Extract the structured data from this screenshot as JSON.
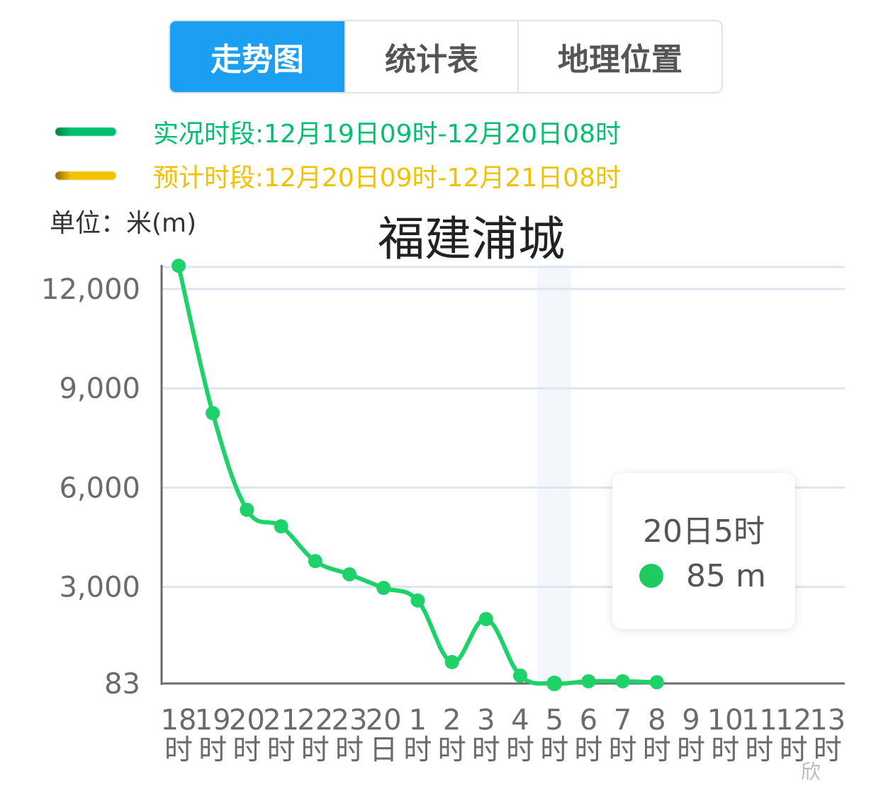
{
  "tabs": [
    {
      "label": "走势图",
      "active": true
    },
    {
      "label": "统计表",
      "active": false
    },
    {
      "label": "地理位置",
      "active": false
    }
  ],
  "legend": [
    {
      "text": "实况时段:12月19日09时-12月20日08时",
      "color": "#00c070"
    },
    {
      "text": "预计时段:12月20日09时-12月21日08时",
      "color": "#f2c200"
    }
  ],
  "unit_label": "单位：米(m)",
  "tooltip": {
    "time": "20日5时",
    "value": "85 m",
    "dot_color": "#1ecb63"
  },
  "watermark": "欣",
  "colors": {
    "line": "#1ed26a",
    "axis": "#6b6b6b",
    "grid": "#dde5f0",
    "highlight": "#f3f6fb"
  },
  "chart_data": {
    "type": "line",
    "title": "福建浦城",
    "ylabel": "单位：米(m)",
    "y_ticks": [
      83,
      3000,
      6000,
      9000,
      12000
    ],
    "y_tick_labels": [
      "83",
      "3,000",
      "6,000",
      "9,000",
      "12,000"
    ],
    "ylim": [
      83,
      13000
    ],
    "x_tick_labels": [
      [
        "18",
        "时"
      ],
      [
        "19",
        "时"
      ],
      [
        "20",
        "时"
      ],
      [
        "21",
        "时"
      ],
      [
        "22",
        "时"
      ],
      [
        "23",
        "时"
      ],
      [
        "20",
        "日"
      ],
      [
        "1",
        "时"
      ],
      [
        "2",
        "时"
      ],
      [
        "3",
        "时"
      ],
      [
        "4",
        "时"
      ],
      [
        "5",
        "时"
      ],
      [
        "6",
        "时"
      ],
      [
        "7",
        "时"
      ],
      [
        "8",
        "时"
      ],
      [
        "9",
        "时"
      ],
      [
        "10",
        "时"
      ],
      [
        "11",
        "时"
      ],
      [
        "12",
        "时"
      ],
      [
        "13",
        "时"
      ]
    ],
    "highlight_index": 11,
    "series": [
      {
        "values": [
          12700,
          8250,
          5330,
          4830,
          3780,
          3380,
          2970,
          2590,
          730,
          2030,
          320,
          85,
          150,
          150,
          120
        ]
      }
    ]
  }
}
